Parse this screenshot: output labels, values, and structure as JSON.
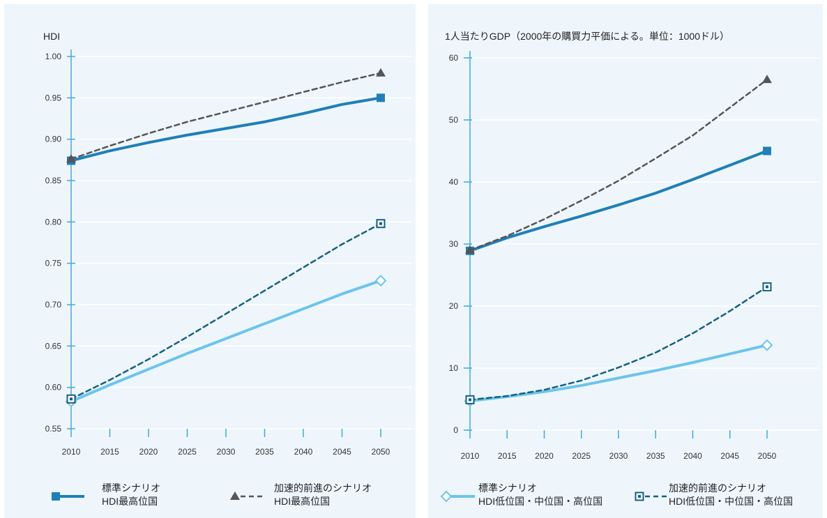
{
  "chart_data": [
    {
      "type": "line",
      "title": "HDI",
      "x": [
        2010,
        2015,
        2020,
        2025,
        2030,
        2035,
        2040,
        2045,
        2050
      ],
      "ylim": [
        0.55,
        1.0
      ],
      "y_ticks": [
        "0.55",
        "0.60",
        "0.65",
        "0.70",
        "0.75",
        "0.80",
        "0.85",
        "0.90",
        "0.95",
        "1.00"
      ],
      "grid": "horizontal",
      "series": [
        {
          "key": "std_top",
          "color": "#1f7fb8",
          "dashed": false,
          "marker": "square",
          "values": [
            0.874,
            0.886,
            0.896,
            0.905,
            0.913,
            0.921,
            0.931,
            0.942,
            0.95
          ]
        },
        {
          "key": "acc_top",
          "color": "#555555",
          "dashed": true,
          "marker": "triangle",
          "values": [
            0.876,
            0.892,
            0.907,
            0.921,
            0.933,
            0.945,
            0.957,
            0.969,
            0.98
          ]
        },
        {
          "key": "std_low",
          "color": "#6cc4ec",
          "dashed": false,
          "marker": "diamond",
          "values": [
            0.583,
            0.603,
            0.622,
            0.641,
            0.659,
            0.677,
            0.695,
            0.713,
            0.729
          ]
        },
        {
          "key": "acc_low",
          "color": "#15607f",
          "dashed": true,
          "marker": "square-dot",
          "values": [
            0.586,
            0.609,
            0.634,
            0.661,
            0.689,
            0.717,
            0.745,
            0.773,
            0.798
          ]
        }
      ],
      "legend": [
        {
          "label1": "標準シナリオ",
          "label2": "HDI最高位国",
          "series": "std_top"
        },
        {
          "label1": "加速的前進のシナリオ",
          "label2": "HDI最高位国",
          "series": "acc_top"
        }
      ]
    },
    {
      "type": "line",
      "title": "1人当たりGDP（2000年の購買力平価による。単位：1000ドル）",
      "x": [
        2010,
        2015,
        2020,
        2025,
        2030,
        2035,
        2040,
        2045,
        2050
      ],
      "ylim": [
        0,
        60
      ],
      "y_ticks": [
        "0",
        "10",
        "20",
        "30",
        "40",
        "50",
        "60"
      ],
      "grid": "horizontal",
      "series": [
        {
          "key": "std_top",
          "color": "#1f7fb8",
          "dashed": false,
          "marker": "square",
          "values": [
            28.9,
            31.0,
            32.8,
            34.5,
            36.3,
            38.2,
            40.4,
            42.7,
            45.0
          ]
        },
        {
          "key": "acc_top",
          "color": "#555555",
          "dashed": true,
          "marker": "triangle",
          "values": [
            29.0,
            31.3,
            34.0,
            37.0,
            40.2,
            43.8,
            47.5,
            52.0,
            56.5
          ]
        },
        {
          "key": "std_low",
          "color": "#6cc4ec",
          "dashed": false,
          "marker": "diamond",
          "values": [
            4.7,
            5.4,
            6.2,
            7.2,
            8.4,
            9.6,
            10.9,
            12.3,
            13.7
          ]
        },
        {
          "key": "acc_low",
          "color": "#15607f",
          "dashed": true,
          "marker": "square-dot",
          "values": [
            4.9,
            5.5,
            6.5,
            8.0,
            10.1,
            12.5,
            15.6,
            19.2,
            23.1
          ]
        }
      ],
      "legend": [
        {
          "label1": "標準シナリオ",
          "label2": "HDI低位国・中位国・高位国",
          "series": "std_low"
        },
        {
          "label1": "加速的前進のシナリオ",
          "label2": "HDI低位国・中位国・高位国",
          "series": "acc_low"
        }
      ]
    }
  ]
}
